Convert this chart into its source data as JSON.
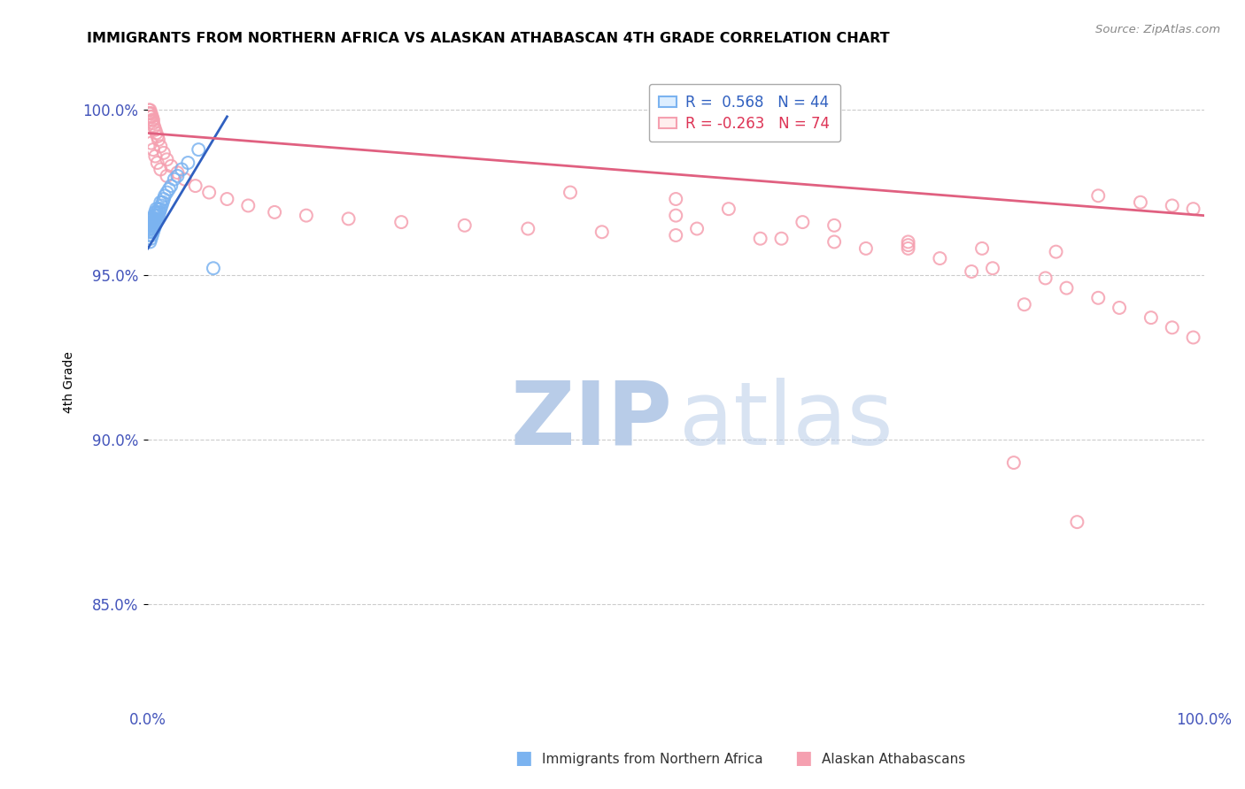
{
  "title": "IMMIGRANTS FROM NORTHERN AFRICA VS ALASKAN ATHABASCAN 4TH GRADE CORRELATION CHART",
  "source": "Source: ZipAtlas.com",
  "ylabel": "4th Grade",
  "ytick_values": [
    1.0,
    0.95,
    0.9,
    0.85
  ],
  "xlim": [
    0.0,
    1.0
  ],
  "ylim": [
    0.82,
    1.015
  ],
  "blue_R": 0.568,
  "blue_N": 44,
  "pink_R": -0.263,
  "pink_N": 74,
  "blue_color": "#7bb3f0",
  "pink_color": "#f5a0b0",
  "blue_line_color": "#3060c0",
  "pink_line_color": "#e06080",
  "grid_color": "#cccccc",
  "blue_line_x": [
    0.0,
    0.075
  ],
  "blue_line_y": [
    0.958,
    0.998
  ],
  "pink_line_x": [
    0.0,
    1.0
  ],
  "pink_line_y": [
    0.993,
    0.968
  ],
  "blue_scatter_x": [
    0.001,
    0.001,
    0.002,
    0.002,
    0.002,
    0.003,
    0.003,
    0.003,
    0.003,
    0.004,
    0.004,
    0.004,
    0.005,
    0.005,
    0.005,
    0.006,
    0.006,
    0.006,
    0.007,
    0.007,
    0.007,
    0.008,
    0.008,
    0.008,
    0.009,
    0.009,
    0.01,
    0.01,
    0.011,
    0.012,
    0.012,
    0.013,
    0.014,
    0.015,
    0.016,
    0.018,
    0.02,
    0.022,
    0.025,
    0.028,
    0.032,
    0.038,
    0.048,
    0.062
  ],
  "blue_scatter_y": [
    0.962,
    0.964,
    0.96,
    0.963,
    0.965,
    0.961,
    0.963,
    0.965,
    0.967,
    0.962,
    0.964,
    0.966,
    0.963,
    0.965,
    0.967,
    0.964,
    0.966,
    0.968,
    0.965,
    0.967,
    0.969,
    0.966,
    0.968,
    0.97,
    0.967,
    0.969,
    0.968,
    0.97,
    0.969,
    0.97,
    0.972,
    0.971,
    0.972,
    0.973,
    0.974,
    0.975,
    0.976,
    0.977,
    0.979,
    0.98,
    0.982,
    0.984,
    0.988,
    0.952
  ],
  "pink_scatter_x": [
    0.001,
    0.001,
    0.001,
    0.002,
    0.002,
    0.002,
    0.003,
    0.003,
    0.004,
    0.004,
    0.005,
    0.005,
    0.006,
    0.007,
    0.008,
    0.009,
    0.01,
    0.012,
    0.015,
    0.018,
    0.022,
    0.028,
    0.035,
    0.045,
    0.058,
    0.075,
    0.095,
    0.12,
    0.15,
    0.19,
    0.24,
    0.3,
    0.36,
    0.43,
    0.5,
    0.58,
    0.65,
    0.72,
    0.79,
    0.86,
    0.9,
    0.94,
    0.97,
    0.99,
    0.003,
    0.005,
    0.007,
    0.009,
    0.012,
    0.018,
    0.4,
    0.55,
    0.65,
    0.72,
    0.78,
    0.83,
    0.88,
    0.5,
    0.62,
    0.72,
    0.82,
    0.5,
    0.52,
    0.6,
    0.68,
    0.75,
    0.8,
    0.85,
    0.87,
    0.9,
    0.92,
    0.95,
    0.97,
    0.99
  ],
  "pink_scatter_y": [
    0.999,
    1.0,
    0.999,
    0.998,
    0.999,
    1.0,
    0.998,
    0.999,
    0.997,
    0.998,
    0.996,
    0.997,
    0.995,
    0.994,
    0.993,
    0.992,
    0.991,
    0.989,
    0.987,
    0.985,
    0.983,
    0.981,
    0.979,
    0.977,
    0.975,
    0.973,
    0.971,
    0.969,
    0.968,
    0.967,
    0.966,
    0.965,
    0.964,
    0.963,
    0.962,
    0.961,
    0.96,
    0.959,
    0.958,
    0.957,
    0.974,
    0.972,
    0.971,
    0.97,
    0.99,
    0.988,
    0.986,
    0.984,
    0.982,
    0.98,
    0.975,
    0.97,
    0.965,
    0.958,
    0.951,
    0.941,
    0.875,
    0.973,
    0.966,
    0.96,
    0.893,
    0.968,
    0.964,
    0.961,
    0.958,
    0.955,
    0.952,
    0.949,
    0.946,
    0.943,
    0.94,
    0.937,
    0.934,
    0.931
  ]
}
